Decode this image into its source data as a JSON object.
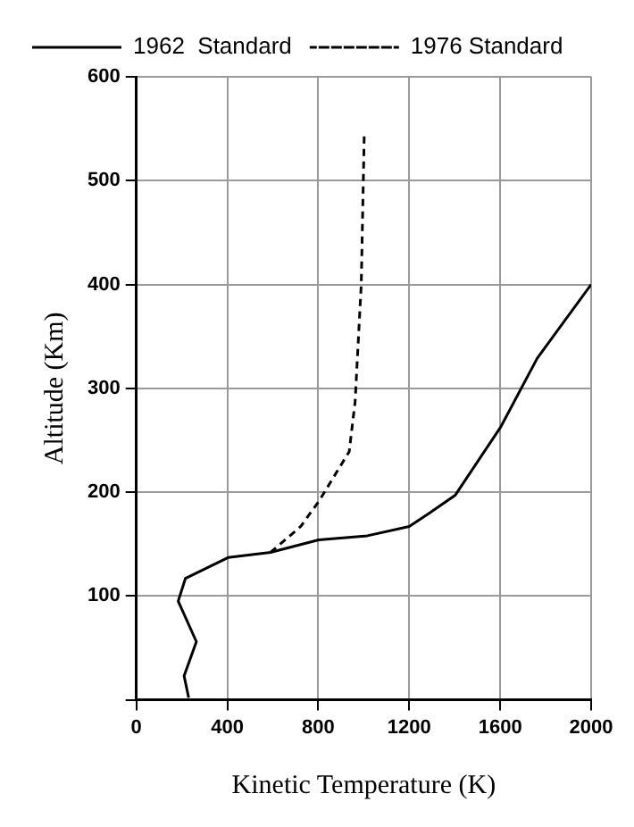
{
  "chart_data": {
    "type": "line",
    "xlabel": "Kinetic Temperature (K)",
    "ylabel": "Altitude (Km)",
    "xlim": [
      0,
      2000
    ],
    "xticks": [
      0,
      400,
      800,
      1200,
      1600,
      2000
    ],
    "ylim": [
      0,
      600
    ],
    "yticks": [
      {
        "value": 0,
        "label": null
      },
      100,
      200,
      300,
      400,
      500,
      600
    ],
    "grid": true,
    "legend": "top left",
    "marker": "none",
    "series": [
      {
        "name": "1962  Standard",
        "color": "#000000",
        "line_style": "solid",
        "x": [
          230,
          210,
          264,
          184,
          216,
          403,
          590,
          802,
          1016,
          1200,
          1283,
          1402,
          1603,
          1763,
          2000
        ],
        "values": [
          2,
          23,
          56,
          95,
          117,
          137,
          142,
          154,
          158,
          167,
          179,
          197,
          263,
          329,
          400
        ]
      },
      {
        "name": "1976 Standard",
        "color": "#000000",
        "line_style": "dashed",
        "x": [
          590,
          723,
          802,
          936,
          962,
          989,
          1002
        ],
        "values": [
          142,
          167,
          191,
          239,
          287,
          400,
          543
        ]
      }
    ]
  }
}
